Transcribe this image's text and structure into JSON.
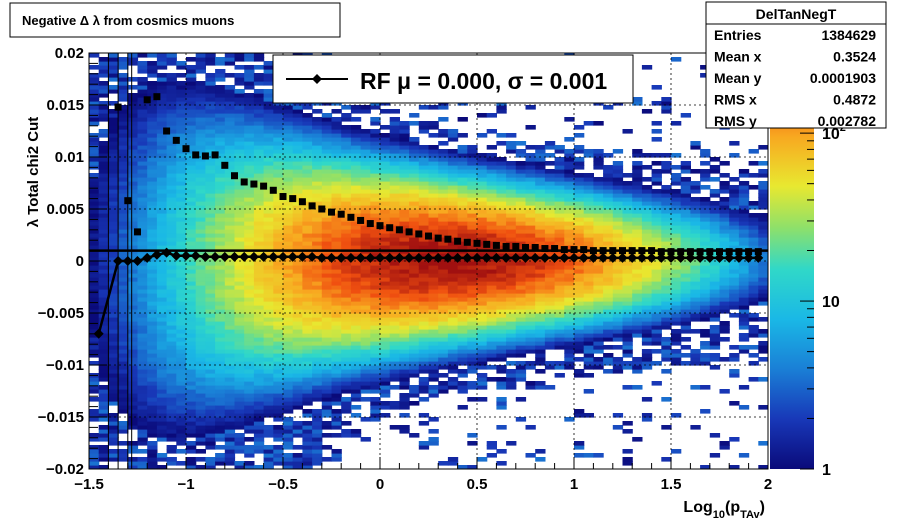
{
  "title": "Negative Δ λ from cosmics muons",
  "stats": {
    "name": "DelTanNegT",
    "rows": [
      {
        "label": "Entries",
        "value": "1384629"
      },
      {
        "label": "Mean x",
        "value": "0.3524"
      },
      {
        "label": "Mean y",
        "value": "0.0001903"
      },
      {
        "label": "RMS x",
        "value": "0.4872"
      },
      {
        "label": "RMS y",
        "value": "0.002782"
      }
    ]
  },
  "chart_data": {
    "type": "heatmap",
    "title": "Negative Δ λ from cosmics muons",
    "xlabel_base": "Log",
    "xlabel_sub1": "10",
    "xlabel_mid": "(p",
    "xlabel_sub2": "TAv",
    "xlabel_end": ")",
    "ylabel": "λ  Total chi2 Cut",
    "xlim": [
      -1.5,
      2
    ],
    "ylim": [
      -0.02,
      0.02
    ],
    "xticks": [
      {
        "v": -1.5,
        "label": "−1.5"
      },
      {
        "v": -1,
        "label": "−1"
      },
      {
        "v": -0.5,
        "label": "−0.5"
      },
      {
        "v": 0,
        "label": "0"
      },
      {
        "v": 0.5,
        "label": "0.5"
      },
      {
        "v": 1,
        "label": "1"
      },
      {
        "v": 1.5,
        "label": "1.5"
      },
      {
        "v": 2,
        "label": "2"
      }
    ],
    "yticks": [
      {
        "v": -0.02,
        "label": "−0.02"
      },
      {
        "v": -0.015,
        "label": "−0.015"
      },
      {
        "v": -0.01,
        "label": "−0.01"
      },
      {
        "v": -0.005,
        "label": "−0.005"
      },
      {
        "v": 0,
        "label": "0"
      },
      {
        "v": 0.005,
        "label": "0.005"
      },
      {
        "v": 0.01,
        "label": "0.01"
      },
      {
        "v": 0.015,
        "label": "0.015"
      },
      {
        "v": 0.02,
        "label": "0.02"
      }
    ],
    "grid": true,
    "colorbar": {
      "scale": "log",
      "range": [
        1,
        300
      ],
      "ticks": [
        {
          "v": 1,
          "label": "1"
        },
        {
          "v": 10,
          "label": "10"
        },
        {
          "v": 100,
          "label": "10",
          "sup": "2"
        }
      ]
    },
    "legend": {
      "placement": "top",
      "text": "RF μ =  0.000, σ =   0.001"
    },
    "mean_series": {
      "x": [
        -1.45,
        -1.35,
        -1.3,
        -1.25,
        -1.2,
        -1.15,
        -1.1,
        -1.05,
        -1.0,
        -0.95,
        -0.9,
        -0.85,
        -0.8,
        -0.75,
        -0.7,
        -0.65,
        -0.6,
        -0.55,
        -0.5,
        -0.45,
        -0.4,
        -0.35,
        -0.3,
        -0.25,
        -0.2,
        -0.15,
        -0.1,
        -0.05,
        0.0,
        0.05,
        0.1,
        0.15,
        0.2,
        0.25,
        0.3,
        0.35,
        0.4,
        0.45,
        0.5,
        0.55,
        0.6,
        0.65,
        0.7,
        0.75,
        0.8,
        0.85,
        0.9,
        0.95,
        1.0,
        1.05,
        1.1,
        1.15,
        1.2,
        1.25,
        1.3,
        1.35,
        1.4,
        1.45,
        1.5,
        1.55,
        1.6,
        1.65,
        1.7,
        1.75,
        1.8,
        1.85,
        1.9,
        1.95
      ],
      "y": [
        -0.007,
        0.0,
        0.0,
        0.0,
        0.0003,
        0.0006,
        0.0008,
        0.0005,
        0.0005,
        0.0005,
        0.0004,
        0.0004,
        0.0004,
        0.0004,
        0.0004,
        0.0004,
        0.0004,
        0.0004,
        0.0004,
        0.0004,
        0.0004,
        0.0004,
        0.0003,
        0.0003,
        0.0003,
        0.0003,
        0.0003,
        0.0003,
        0.0003,
        0.0003,
        0.0003,
        0.0003,
        0.0003,
        0.0003,
        0.0003,
        0.0003,
        0.0003,
        0.0003,
        0.0003,
        0.0003,
        0.0003,
        0.0003,
        0.0003,
        0.0003,
        0.0003,
        0.0003,
        0.0003,
        0.0003,
        0.0003,
        0.0003,
        0.0003,
        0.0003,
        0.0003,
        0.0003,
        0.0003,
        0.0003,
        0.0003,
        0.0003,
        0.0003,
        0.0003,
        0.0003,
        0.0003,
        0.0003,
        0.0003,
        0.0003,
        0.0003,
        0.0003,
        0.0003
      ]
    },
    "rms_series": {
      "x": [
        -1.35,
        -1.3,
        -1.25,
        -1.2,
        -1.15,
        -1.1,
        -1.05,
        -1.0,
        -0.95,
        -0.9,
        -0.85,
        -0.8,
        -0.75,
        -0.7,
        -0.65,
        -0.6,
        -0.55,
        -0.5,
        -0.45,
        -0.4,
        -0.35,
        -0.3,
        -0.25,
        -0.2,
        -0.15,
        -0.1,
        -0.05,
        0.0,
        0.05,
        0.1,
        0.15,
        0.2,
        0.25,
        0.3,
        0.35,
        0.4,
        0.45,
        0.5,
        0.55,
        0.6,
        0.65,
        0.7,
        0.75,
        0.8,
        0.85,
        0.9,
        0.95,
        1.0,
        1.05,
        1.1,
        1.15,
        1.2,
        1.25,
        1.3,
        1.35,
        1.4,
        1.45,
        1.5,
        1.55,
        1.6,
        1.65,
        1.7,
        1.75,
        1.8,
        1.85,
        1.9,
        1.95
      ],
      "y": [
        0.0148,
        0.0058,
        0.0028,
        0.0155,
        0.0158,
        0.0125,
        0.0116,
        0.0108,
        0.0102,
        0.0101,
        0.0102,
        0.0092,
        0.0082,
        0.0076,
        0.0074,
        0.0072,
        0.0068,
        0.0062,
        0.006,
        0.0057,
        0.0053,
        0.005,
        0.0047,
        0.0045,
        0.0042,
        0.0039,
        0.0036,
        0.0034,
        0.0032,
        0.003,
        0.0028,
        0.0026,
        0.0024,
        0.0022,
        0.0021,
        0.0019,
        0.0018,
        0.0017,
        0.0016,
        0.0015,
        0.0014,
        0.0014,
        0.0013,
        0.0013,
        0.0012,
        0.0012,
        0.0011,
        0.0011,
        0.0011,
        0.001,
        0.001,
        0.001,
        0.001,
        0.001,
        0.001,
        0.001,
        0.0009,
        0.0009,
        0.0009,
        0.0009,
        0.0009,
        0.0009,
        0.0009,
        0.0009,
        0.0009,
        0.0009,
        0.0009
      ]
    },
    "fit_line": {
      "y": 0.001
    }
  }
}
